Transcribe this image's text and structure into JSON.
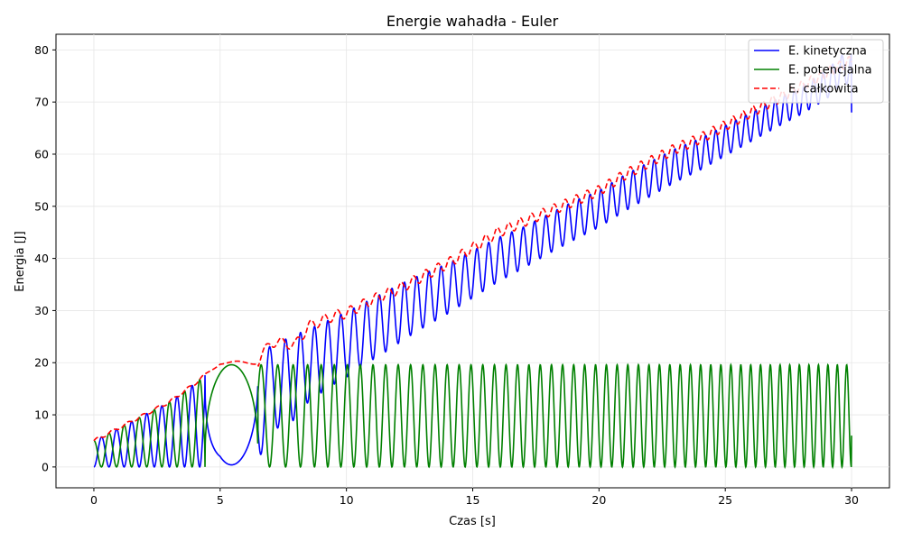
{
  "chart_data": {
    "type": "line",
    "title": "Energie wahadła - Euler",
    "xlabel": "Czas [s]",
    "ylabel": "Energia [J]",
    "xlim": [
      -1.5,
      31.5
    ],
    "ylim": [
      -4,
      83
    ],
    "xticks": [
      0,
      5,
      10,
      15,
      20,
      25,
      30
    ],
    "yticks": [
      0,
      10,
      20,
      30,
      40,
      50,
      60,
      70,
      80
    ],
    "grid": true,
    "legend_position": "top-right",
    "series": [
      {
        "name": "E. kinetyczna",
        "color": "#0000ff",
        "dash": "solid",
        "description": "oscillates between minima rising 0→57 and maxima rising 6→79"
      },
      {
        "name": "E. potencjalna",
        "color": "#008000",
        "dash": "solid",
        "description": "oscillates between 0 and about 19.6"
      },
      {
        "name": "E. całkowita",
        "color": "#ff0000",
        "dash": "dashed",
        "description": "total energy drifting upward from 5 to about 78"
      }
    ],
    "keypoints": {
      "total": [
        [
          0,
          5
        ],
        [
          1,
          7.5
        ],
        [
          2,
          10
        ],
        [
          3,
          12.5
        ],
        [
          4,
          16
        ],
        [
          5,
          20
        ],
        [
          6.5,
          20
        ],
        [
          7,
          24
        ],
        [
          8,
          23.5
        ],
        [
          8.5,
          27
        ],
        [
          9.5,
          29
        ],
        [
          10,
          29.5
        ],
        [
          11,
          32
        ],
        [
          12,
          34
        ],
        [
          13,
          36.5
        ],
        [
          14,
          39
        ],
        [
          15,
          42
        ],
        [
          16,
          45
        ],
        [
          17,
          47
        ],
        [
          18,
          49
        ],
        [
          19,
          51
        ],
        [
          20,
          53
        ],
        [
          21,
          56
        ],
        [
          22,
          58.5
        ],
        [
          23,
          61
        ],
        [
          24,
          63
        ],
        [
          25,
          65.5
        ],
        [
          26,
          68
        ],
        [
          27,
          70.5
        ],
        [
          28,
          73
        ],
        [
          29,
          75.5
        ],
        [
          30,
          78
        ]
      ],
      "kin_min": [
        [
          0,
          0
        ],
        [
          3,
          0
        ],
        [
          4.3,
          0.2
        ],
        [
          5.4,
          0.5
        ],
        [
          6.6,
          1
        ],
        [
          7.3,
          4
        ],
        [
          8.4,
          7
        ],
        [
          9.4,
          9.5
        ],
        [
          10.5,
          12
        ],
        [
          11.5,
          14
        ],
        [
          12.5,
          16.5
        ],
        [
          13.4,
          18.5
        ],
        [
          14.3,
          20.5
        ],
        [
          15.2,
          22.5
        ],
        [
          16,
          24.5
        ],
        [
          17,
          27
        ],
        [
          18,
          29.5
        ],
        [
          19,
          31.5
        ],
        [
          20,
          34
        ],
        [
          21,
          36
        ],
        [
          22,
          38.5
        ],
        [
          23,
          41
        ],
        [
          24,
          43.5
        ],
        [
          25,
          46
        ],
        [
          26,
          48.5
        ],
        [
          27,
          51
        ],
        [
          28,
          53
        ],
        [
          29,
          55
        ],
        [
          29.7,
          57
        ]
      ],
      "kin_max": [
        [
          0,
          0.5
        ],
        [
          0.6,
          6
        ],
        [
          1.7,
          9
        ],
        [
          3,
          13
        ],
        [
          4.4,
          18
        ],
        [
          6.5,
          22
        ],
        [
          7.8,
          25
        ],
        [
          9,
          27.5
        ],
        [
          10.1,
          30
        ],
        [
          11.1,
          32.5
        ],
        [
          12.1,
          35
        ],
        [
          13,
          37
        ],
        [
          14,
          39
        ],
        [
          15,
          41.5
        ],
        [
          16,
          44
        ],
        [
          17,
          46
        ],
        [
          18,
          48.5
        ],
        [
          19,
          51
        ],
        [
          20,
          53
        ],
        [
          21,
          56
        ],
        [
          22,
          58.5
        ],
        [
          23,
          61
        ],
        [
          24,
          63
        ],
        [
          25,
          65.5
        ],
        [
          26,
          68
        ],
        [
          27,
          70.5
        ],
        [
          28,
          73
        ],
        [
          29,
          76
        ],
        [
          29.6,
          79
        ]
      ],
      "pot_max": 19.6,
      "kin_end": [
        30,
        68
      ],
      "pot_end": [
        30,
        6
      ]
    }
  }
}
